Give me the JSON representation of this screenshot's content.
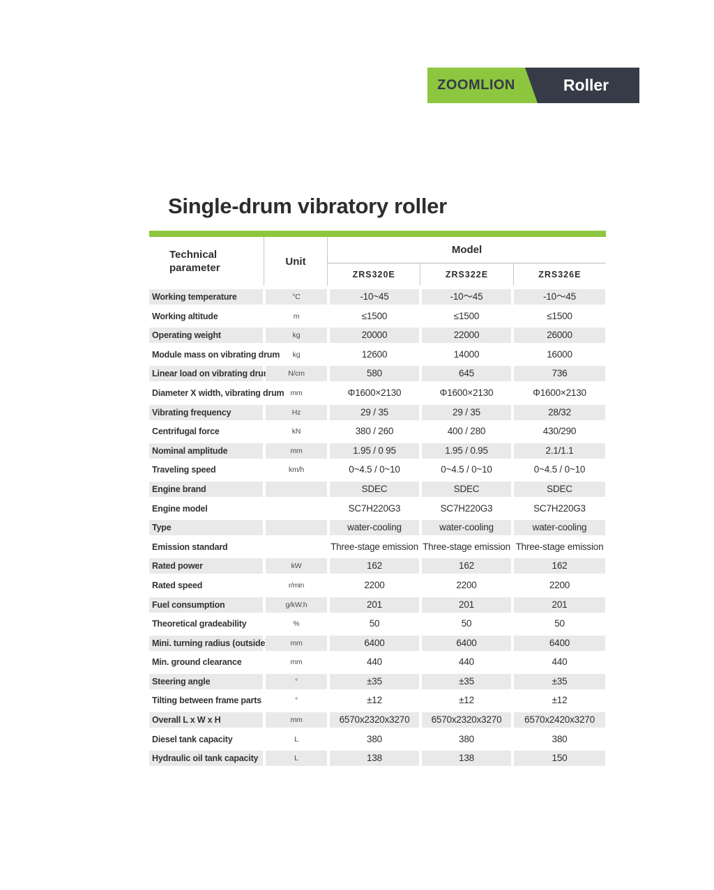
{
  "badge": {
    "brand": "ZOOMLION",
    "product": "Roller",
    "green_color": "#8dc63f",
    "dark_color": "#363b47"
  },
  "page_title": "Single-drum vibratory roller",
  "accent_color": "#8dc63f",
  "stripe_color": "#e9e9e9",
  "table": {
    "header": {
      "param": "Technical parameter",
      "unit": "Unit",
      "model": "Model",
      "models": [
        "ZRS320E",
        "ZRS322E",
        "ZRS326E"
      ]
    },
    "rows": [
      {
        "param": "Working temperature",
        "unit": "°C",
        "values": [
          "-10~45",
          "-10〜45",
          "-10〜45"
        ]
      },
      {
        "param": "Working altitude",
        "unit": "m",
        "values": [
          "≤1500",
          "≤1500",
          "≤1500"
        ]
      },
      {
        "param": "Operating weight",
        "unit": "kg",
        "values": [
          "20000",
          "22000",
          "26000"
        ]
      },
      {
        "param": "Module mass on vibrating drum",
        "unit": "kg",
        "values": [
          "12600",
          "14000",
          "16000"
        ]
      },
      {
        "param": "Linear load on vibrating drum",
        "unit": "N/cm",
        "values": [
          "580",
          "645",
          "736"
        ]
      },
      {
        "param": "Diameter X width, vibrating drum",
        "unit": "mm",
        "values": [
          "Φ1600×2130",
          "Φ1600×2130",
          "Φ1600×2130"
        ]
      },
      {
        "param": "Vibrating frequency",
        "unit": "Hz",
        "values": [
          "29 / 35",
          "29 / 35",
          "28/32"
        ]
      },
      {
        "param": "Centrifugal force",
        "unit": "kN",
        "values": [
          "380 / 260",
          "400 / 280",
          "430/290"
        ]
      },
      {
        "param": "Nominal amplitude",
        "unit": "mm",
        "values": [
          "1.95 / 0 95",
          "1.95 / 0.95",
          "2.1/1.1"
        ]
      },
      {
        "param": "Traveling speed",
        "unit": "km/h",
        "values": [
          "0~4.5 / 0~10",
          "0~4.5 / 0~10",
          "0~4.5 / 0~10"
        ]
      },
      {
        "param": "Engine brand",
        "unit": "",
        "values": [
          "SDEC",
          "SDEC",
          "SDEC"
        ]
      },
      {
        "param": "Engine model",
        "unit": "",
        "values": [
          "SC7H220G3",
          "SC7H220G3",
          "SC7H220G3"
        ]
      },
      {
        "param": "Type",
        "unit": "",
        "values": [
          "water-cooling",
          "water-cooling",
          "water-cooling"
        ]
      },
      {
        "param": "Emission standard",
        "unit": "",
        "values": [
          "Three-stage emission",
          "Three-stage emission",
          "Three-stage emission"
        ]
      },
      {
        "param": "Rated power",
        "unit": "kW",
        "values": [
          "162",
          "162",
          "162"
        ]
      },
      {
        "param": "Rated speed",
        "unit": "r/min",
        "values": [
          "2200",
          "2200",
          "2200"
        ]
      },
      {
        "param": "Fuel consumption",
        "unit": "g/kW.h",
        "values": [
          "201",
          "201",
          "201"
        ]
      },
      {
        "param": "Theoretical gradeability",
        "unit": "%",
        "values": [
          "50",
          "50",
          "50"
        ]
      },
      {
        "param": "Mini. turning radius (outside)",
        "unit": "mm",
        "values": [
          "6400",
          "6400",
          "6400"
        ]
      },
      {
        "param": "Min. ground clearance",
        "unit": "mm",
        "values": [
          "440",
          "440",
          "440"
        ]
      },
      {
        "param": "Steering angle",
        "unit": "°",
        "values": [
          "±35",
          "±35",
          "±35"
        ]
      },
      {
        "param": "Tilting between frame parts",
        "unit": "°",
        "values": [
          "±12",
          "±12",
          "±12"
        ]
      },
      {
        "param": "Overall L x W x H",
        "unit": "mm",
        "values": [
          "6570x2320x3270",
          "6570x2320x3270",
          "6570x2420x3270"
        ]
      },
      {
        "param": "Diesel tank capacity",
        "unit": "L",
        "values": [
          "380",
          "380",
          "380"
        ]
      },
      {
        "param": "Hydraulic oil tank capacity",
        "unit": "L",
        "values": [
          "138",
          "138",
          "150"
        ]
      }
    ]
  }
}
